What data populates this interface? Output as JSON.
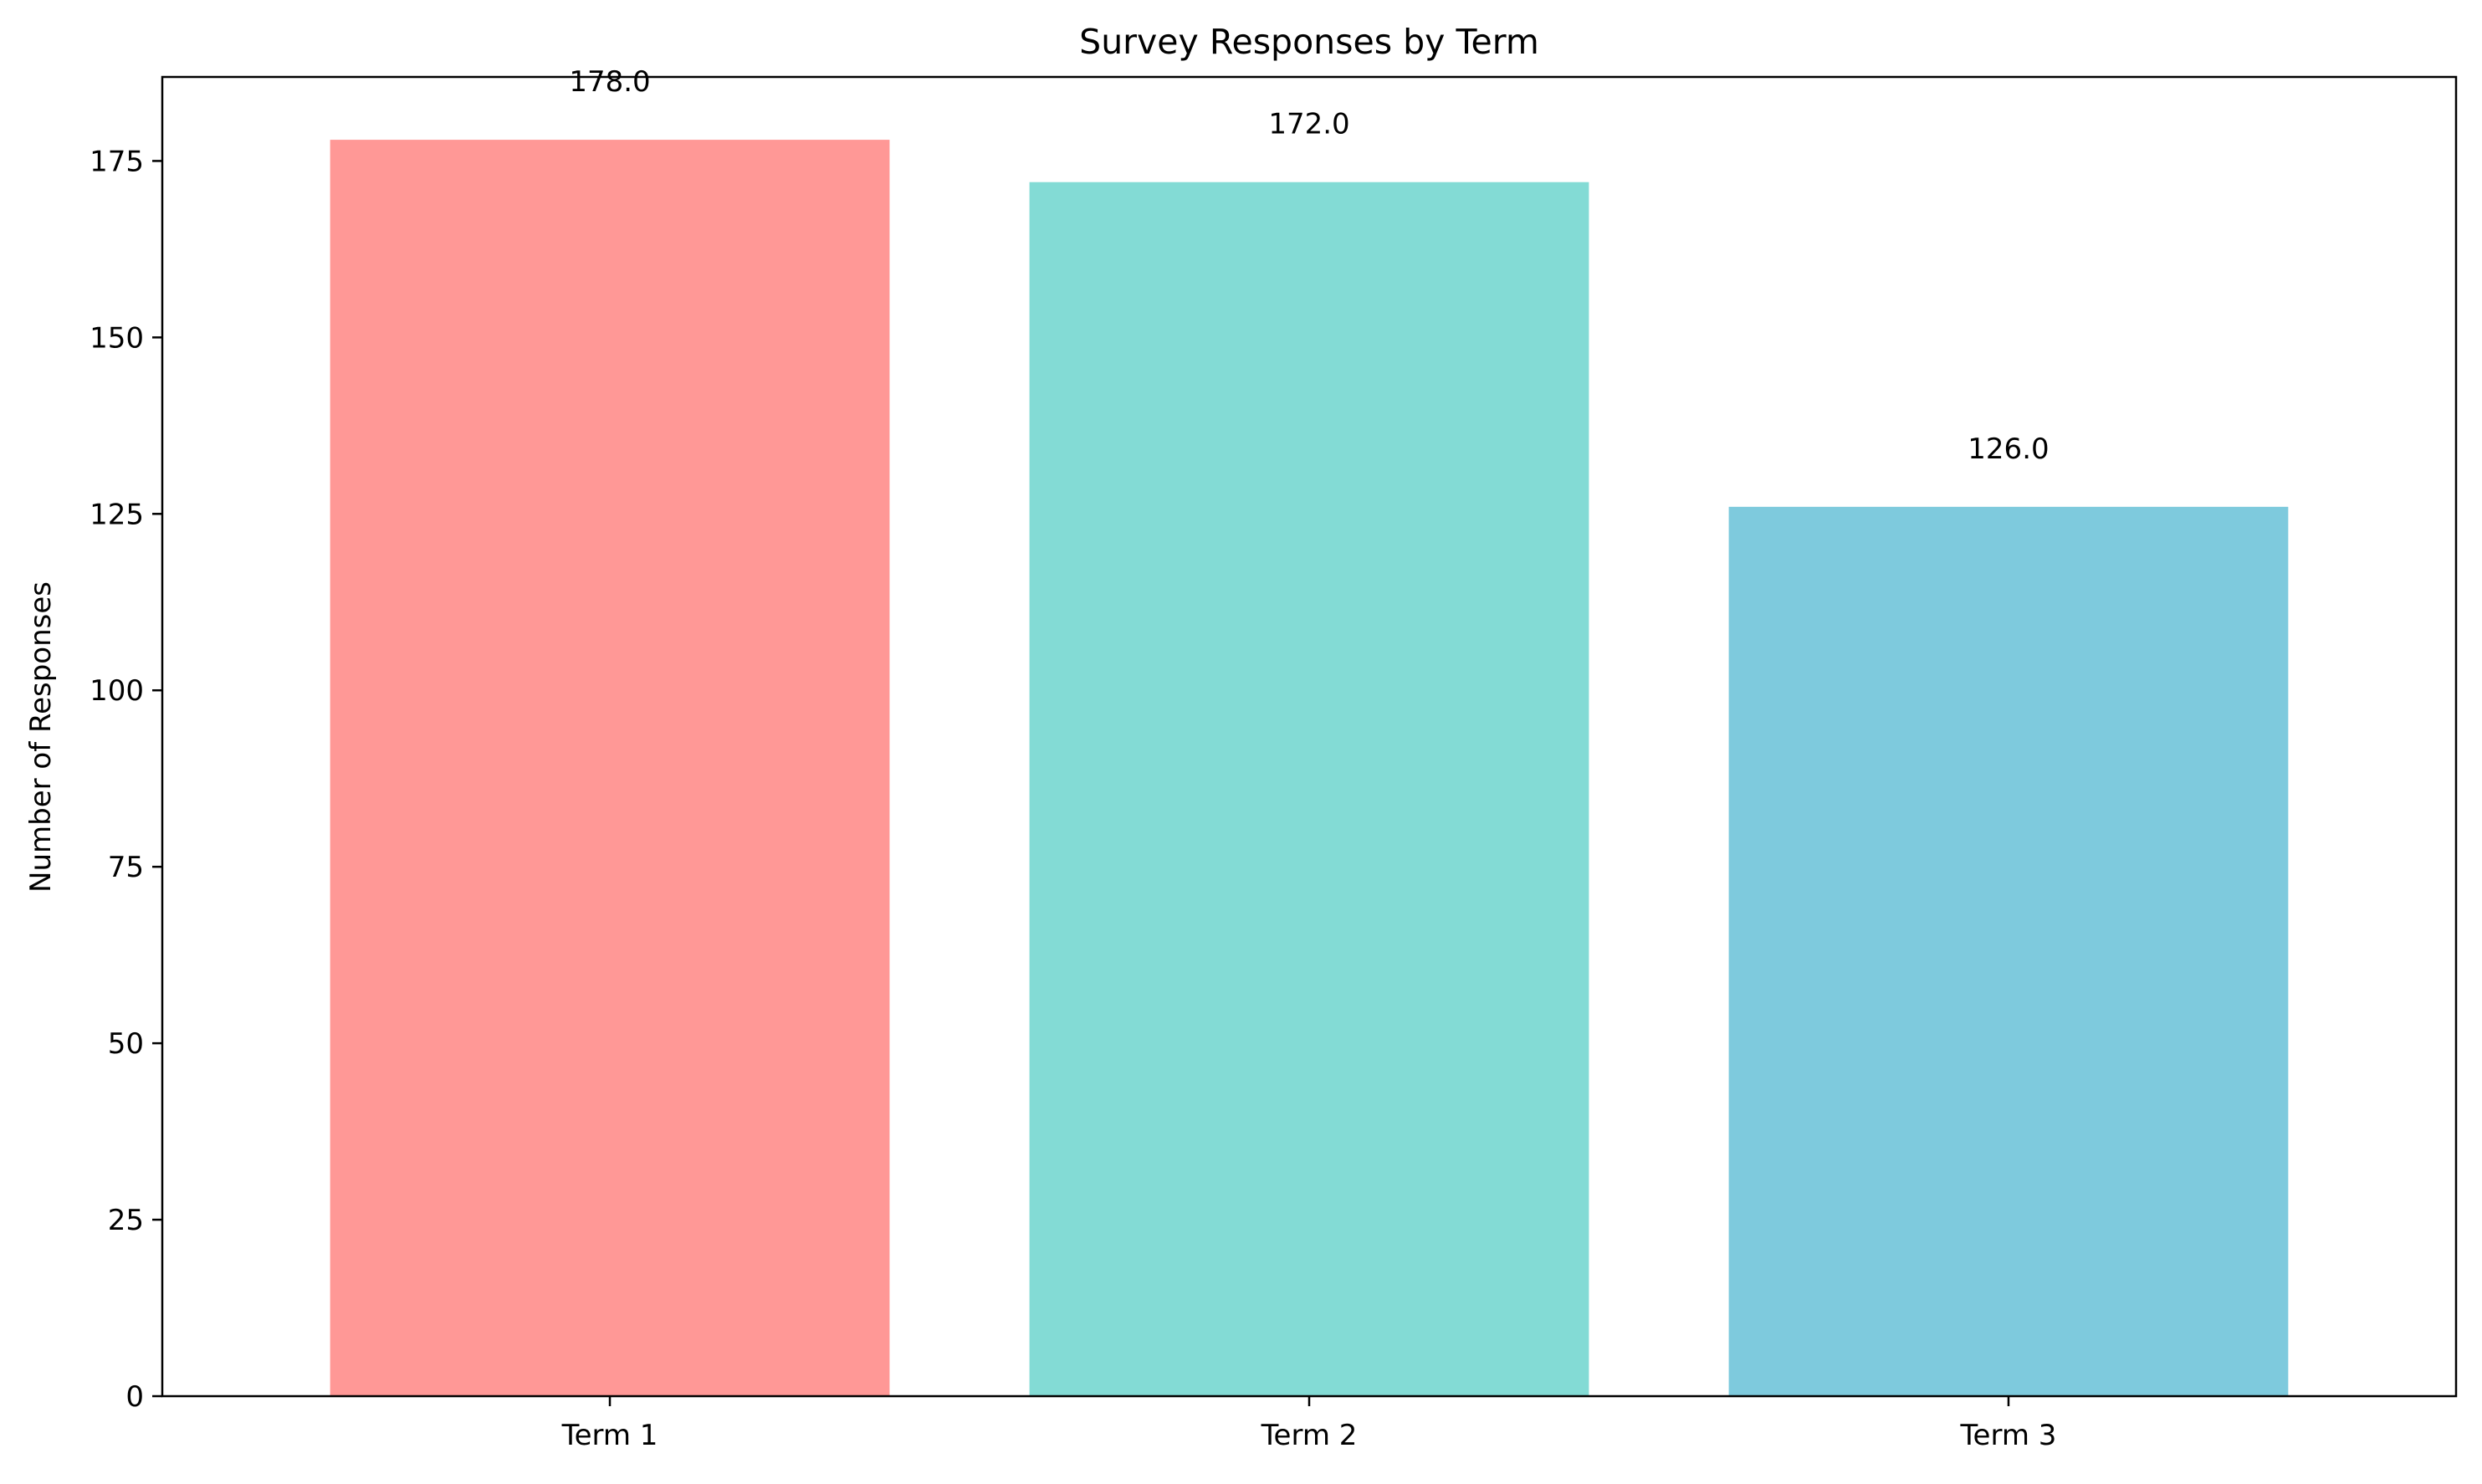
{
  "chart_data": {
    "type": "bar",
    "title": "Survey Responses by Term",
    "xlabel": "",
    "ylabel": "Number of Responses",
    "categories": [
      "Term 1",
      "Term 2",
      "Term 3"
    ],
    "values": [
      178,
      172,
      126
    ],
    "data_labels": [
      "178.0",
      "172.0",
      "126.0"
    ],
    "colors": [
      "#ff9896",
      "#83dbd5",
      "#7ecadd"
    ],
    "ylim": [
      0,
      186.9
    ],
    "yticks": [
      0,
      25,
      50,
      75,
      100,
      125,
      150,
      175
    ],
    "ytick_labels": [
      "0",
      "25",
      "50",
      "75",
      "100",
      "125",
      "150",
      "175"
    ],
    "grid": false,
    "legend": "none"
  }
}
